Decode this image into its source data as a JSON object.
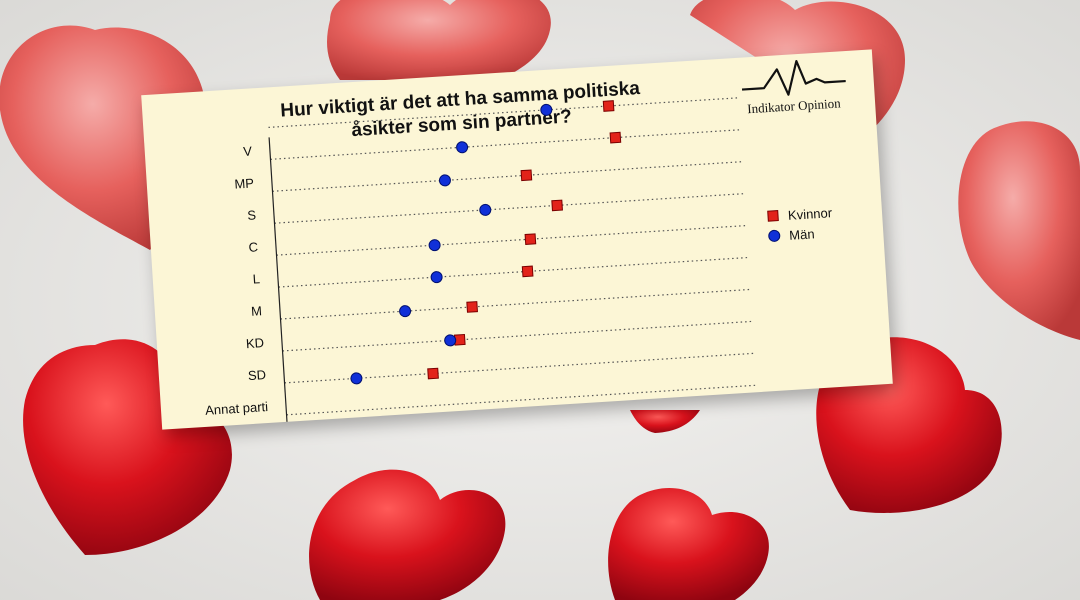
{
  "chart_data": {
    "type": "scatter",
    "title": [
      "Hur viktigt är det att ha samma politiska",
      "åsikter som sin partner?"
    ],
    "categories": [
      "V",
      "MP",
      "S",
      "C",
      "L",
      "M",
      "KD",
      "SD",
      "Annat parti"
    ],
    "series": [
      {
        "name": "Kvinnor",
        "color": "#e2231a",
        "marker": "square",
        "values": [
          71,
          72,
          53,
          59,
          53,
          52,
          40,
          37,
          31
        ]
      },
      {
        "name": "Män",
        "color": "#1030d8",
        "marker": "circle",
        "values": [
          58,
          40,
          36,
          44,
          33,
          33,
          26,
          35,
          15
        ]
      }
    ],
    "xlim": [
      0,
      100
    ],
    "xticks": [
      0,
      10,
      20,
      30,
      40,
      50,
      60,
      70,
      80,
      90,
      100
    ],
    "grid": "dotted horizontal",
    "legend_position": "right"
  },
  "brand": {
    "name": "Indikator Opinion"
  }
}
